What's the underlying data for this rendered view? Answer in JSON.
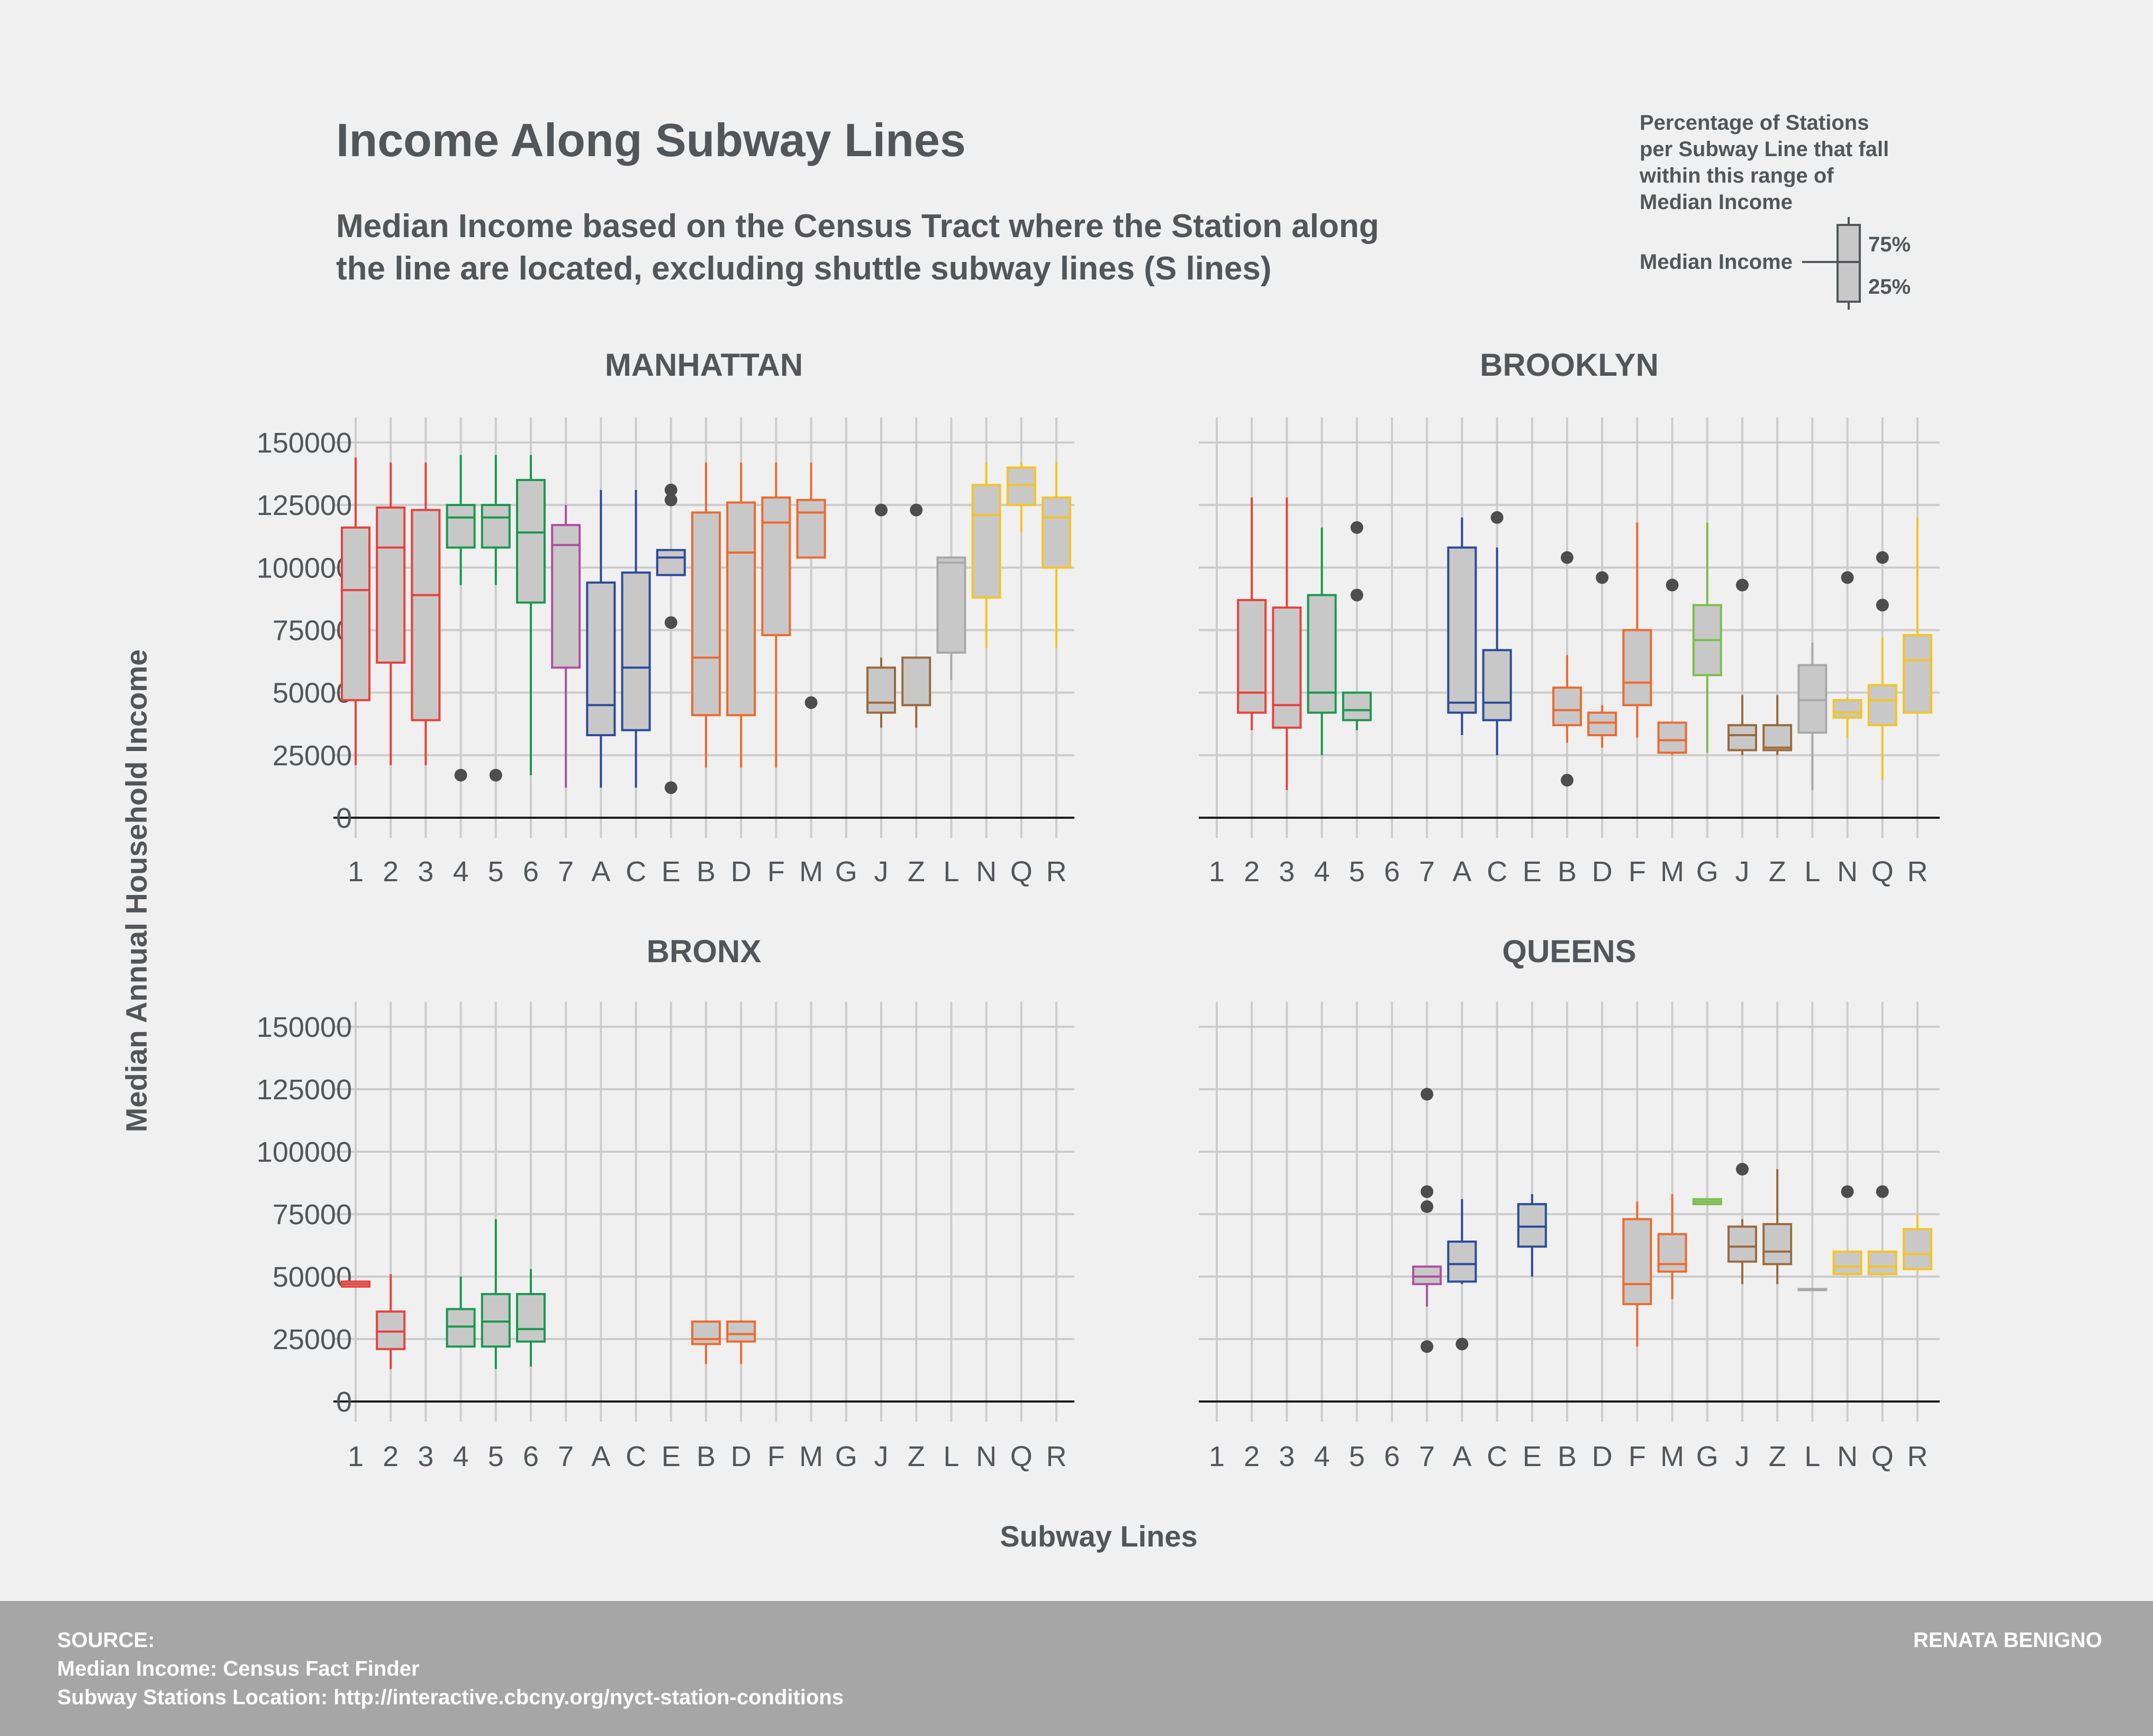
{
  "title": "Income Along Subway Lines",
  "subtitle_line1": "Median Income based on the Census Tract where the Station along",
  "subtitle_line2": "the line are located, excluding shuttle subway lines (S lines)",
  "legend": {
    "lines": [
      "Percentage of Stations",
      "per Subway Line that fall",
      "within this range of",
      "Median Income"
    ],
    "median_label": "Median Income",
    "upper_label": "75%",
    "lower_label": "25%"
  },
  "footer": {
    "source_label": "SOURCE:",
    "source_line1": "Median Income: Census Fact Finder",
    "source_line2": "Subway Stations Location: http://interactive.cbcny.org/nyct-station-conditions",
    "author": "RENATA BENIGNO"
  },
  "chart_data": {
    "type": "boxplot",
    "xlabel": "Subway Lines",
    "ylabel": "Median Annual Household Income",
    "ylim": [
      0,
      160000
    ],
    "yticks": [
      0,
      25000,
      50000,
      75000,
      100000,
      125000,
      150000
    ],
    "ytick_labels": [
      "0",
      "25000",
      "50000",
      "75000",
      "100000",
      "125000",
      "150000"
    ],
    "categories": [
      "1",
      "2",
      "3",
      "4",
      "5",
      "6",
      "7",
      "A",
      "C",
      "E",
      "B",
      "D",
      "F",
      "M",
      "G",
      "J",
      "Z",
      "L",
      "N",
      "Q",
      "R"
    ],
    "line_colors": {
      "1": "#e8413c",
      "2": "#e8413c",
      "3": "#e8413c",
      "4": "#1a9850",
      "5": "#1a9850",
      "6": "#1a9850",
      "7": "#b04fa0",
      "A": "#2b4a9a",
      "C": "#2b4a9a",
      "E": "#2b4a9a",
      "B": "#ee6a2e",
      "D": "#ee6a2e",
      "F": "#ee6a2e",
      "M": "#ee6a2e",
      "G": "#7bbf4b",
      "J": "#9b6a3c",
      "Z": "#9b6a3c",
      "L": "#a8a8a8",
      "N": "#f5c425",
      "Q": "#f5c425",
      "R": "#f5c425"
    },
    "panels": [
      {
        "name": "MANHATTAN",
        "boxes": [
          {
            "line": "1",
            "min": 21000,
            "q1": 47000,
            "median": 91000,
            "q3": 116000,
            "max": 144000,
            "outliers": []
          },
          {
            "line": "2",
            "min": 21000,
            "q1": 62000,
            "median": 108000,
            "q3": 124000,
            "max": 142000,
            "outliers": []
          },
          {
            "line": "3",
            "min": 21000,
            "q1": 39000,
            "median": 89000,
            "q3": 123000,
            "max": 142000,
            "outliers": []
          },
          {
            "line": "4",
            "min": 93000,
            "q1": 108000,
            "median": 120000,
            "q3": 125000,
            "max": 145000,
            "outliers": [
              17000
            ]
          },
          {
            "line": "5",
            "min": 93000,
            "q1": 108000,
            "median": 120000,
            "q3": 125000,
            "max": 145000,
            "outliers": [
              17000
            ]
          },
          {
            "line": "6",
            "min": 17000,
            "q1": 86000,
            "median": 114000,
            "q3": 135000,
            "max": 145000,
            "outliers": []
          },
          {
            "line": "7",
            "min": 12000,
            "q1": 60000,
            "median": 109000,
            "q3": 117000,
            "max": 125000,
            "outliers": []
          },
          {
            "line": "A",
            "min": 12000,
            "q1": 33000,
            "median": 45000,
            "q3": 94000,
            "max": 131000,
            "outliers": []
          },
          {
            "line": "C",
            "min": 12000,
            "q1": 35000,
            "median": 60000,
            "q3": 98000,
            "max": 131000,
            "outliers": []
          },
          {
            "line": "E",
            "min": 97000,
            "q1": 97000,
            "median": 104000,
            "q3": 107000,
            "max": 107000,
            "outliers": [
              12000,
              78000,
              127000,
              131000
            ]
          },
          {
            "line": "B",
            "min": 20000,
            "q1": 41000,
            "median": 64000,
            "q3": 122000,
            "max": 142000,
            "outliers": []
          },
          {
            "line": "D",
            "min": 20000,
            "q1": 41000,
            "median": 106000,
            "q3": 126000,
            "max": 142000,
            "outliers": []
          },
          {
            "line": "F",
            "min": 20000,
            "q1": 73000,
            "median": 118000,
            "q3": 128000,
            "max": 142000,
            "outliers": []
          },
          {
            "line": "M",
            "min": 104000,
            "q1": 104000,
            "median": 122000,
            "q3": 127000,
            "max": 142000,
            "outliers": [
              46000
            ]
          },
          {
            "line": "J",
            "min": 36000,
            "q1": 42000,
            "median": 46000,
            "q3": 60000,
            "max": 64000,
            "outliers": [
              123000
            ]
          },
          {
            "line": "Z",
            "min": 36000,
            "q1": 45000,
            "median": 45000,
            "q3": 64000,
            "max": 64000,
            "outliers": [
              123000
            ]
          },
          {
            "line": "L",
            "min": 55000,
            "q1": 66000,
            "median": 102000,
            "q3": 104000,
            "max": 104000,
            "outliers": []
          },
          {
            "line": "N",
            "min": 68000,
            "q1": 88000,
            "median": 121000,
            "q3": 133000,
            "max": 142000,
            "outliers": []
          },
          {
            "line": "Q",
            "min": 114000,
            "q1": 125000,
            "median": 133000,
            "q3": 140000,
            "max": 142000,
            "outliers": []
          },
          {
            "line": "R",
            "min": 68000,
            "q1": 100000,
            "median": 120000,
            "q3": 128000,
            "max": 142000,
            "outliers": []
          }
        ]
      },
      {
        "name": "BROOKLYN",
        "boxes": [
          {
            "line": "2",
            "min": 35000,
            "q1": 42000,
            "median": 50000,
            "q3": 87000,
            "max": 128000,
            "outliers": []
          },
          {
            "line": "3",
            "min": 11000,
            "q1": 36000,
            "median": 45000,
            "q3": 84000,
            "max": 128000,
            "outliers": []
          },
          {
            "line": "4",
            "min": 25000,
            "q1": 42000,
            "median": 50000,
            "q3": 89000,
            "max": 116000,
            "outliers": []
          },
          {
            "line": "5",
            "min": 35000,
            "q1": 39000,
            "median": 43000,
            "q3": 50000,
            "max": 50000,
            "outliers": [
              89000,
              116000
            ]
          },
          {
            "line": "A",
            "min": 33000,
            "q1": 42000,
            "median": 46000,
            "q3": 108000,
            "max": 120000,
            "outliers": []
          },
          {
            "line": "C",
            "min": 25000,
            "q1": 39000,
            "median": 46000,
            "q3": 67000,
            "max": 108000,
            "outliers": [
              120000
            ]
          },
          {
            "line": "B",
            "min": 30000,
            "q1": 37000,
            "median": 43000,
            "q3": 52000,
            "max": 65000,
            "outliers": [
              15000,
              104000
            ]
          },
          {
            "line": "D",
            "min": 28000,
            "q1": 33000,
            "median": 38000,
            "q3": 42000,
            "max": 45000,
            "outliers": [
              96000
            ]
          },
          {
            "line": "F",
            "min": 32000,
            "q1": 45000,
            "median": 54000,
            "q3": 75000,
            "max": 118000,
            "outliers": []
          },
          {
            "line": "M",
            "min": 25000,
            "q1": 26000,
            "median": 31000,
            "q3": 38000,
            "max": 38000,
            "outliers": [
              93000
            ]
          },
          {
            "line": "G",
            "min": 26000,
            "q1": 57000,
            "median": 71000,
            "q3": 85000,
            "max": 118000,
            "outliers": []
          },
          {
            "line": "J",
            "min": 25000,
            "q1": 27000,
            "median": 33000,
            "q3": 37000,
            "max": 49000,
            "outliers": [
              93000
            ]
          },
          {
            "line": "Z",
            "min": 25000,
            "q1": 27000,
            "median": 28000,
            "q3": 37000,
            "max": 49000,
            "outliers": []
          },
          {
            "line": "L",
            "min": 11000,
            "q1": 34000,
            "median": 47000,
            "q3": 61000,
            "max": 70000,
            "outliers": []
          },
          {
            "line": "N",
            "min": 32000,
            "q1": 40000,
            "median": 42000,
            "q3": 47000,
            "max": 48000,
            "outliers": [
              96000
            ]
          },
          {
            "line": "Q",
            "min": 15000,
            "q1": 37000,
            "median": 47000,
            "q3": 53000,
            "max": 72000,
            "outliers": [
              85000,
              104000
            ]
          },
          {
            "line": "R",
            "min": 42000,
            "q1": 42000,
            "median": 63000,
            "q3": 73000,
            "max": 120000,
            "outliers": []
          }
        ]
      },
      {
        "name": "BRONX",
        "boxes": [
          {
            "line": "1",
            "min": 46000,
            "q1": 46000,
            "median": 47000,
            "q3": 48000,
            "max": 48000,
            "outliers": []
          },
          {
            "line": "2",
            "min": 13000,
            "q1": 21000,
            "median": 28000,
            "q3": 36000,
            "max": 51000,
            "outliers": []
          },
          {
            "line": "4",
            "min": 22000,
            "q1": 22000,
            "median": 30000,
            "q3": 37000,
            "max": 50000,
            "outliers": []
          },
          {
            "line": "5",
            "min": 13000,
            "q1": 22000,
            "median": 32000,
            "q3": 43000,
            "max": 73000,
            "outliers": []
          },
          {
            "line": "6",
            "min": 14000,
            "q1": 24000,
            "median": 29000,
            "q3": 43000,
            "max": 53000,
            "outliers": []
          },
          {
            "line": "B",
            "min": 15000,
            "q1": 23000,
            "median": 25000,
            "q3": 32000,
            "max": 32000,
            "outliers": []
          },
          {
            "line": "D",
            "min": 15000,
            "q1": 24000,
            "median": 27000,
            "q3": 32000,
            "max": 32000,
            "outliers": []
          }
        ]
      },
      {
        "name": "QUEENS",
        "boxes": [
          {
            "line": "7",
            "min": 38000,
            "q1": 47000,
            "median": 50000,
            "q3": 54000,
            "max": 54000,
            "outliers": [
              22000,
              78000,
              84000,
              123000
            ]
          },
          {
            "line": "A",
            "min": 47000,
            "q1": 48000,
            "median": 55000,
            "q3": 64000,
            "max": 81000,
            "outliers": [
              23000
            ]
          },
          {
            "line": "E",
            "min": 50000,
            "q1": 62000,
            "median": 70000,
            "q3": 79000,
            "max": 83000,
            "outliers": []
          },
          {
            "line": "F",
            "min": 22000,
            "q1": 39000,
            "median": 47000,
            "q3": 73000,
            "max": 80000,
            "outliers": []
          },
          {
            "line": "M",
            "min": 41000,
            "q1": 52000,
            "median": 55000,
            "q3": 67000,
            "max": 83000,
            "outliers": []
          },
          {
            "line": "G",
            "min": 79000,
            "q1": 79000,
            "median": 80000,
            "q3": 81000,
            "max": 81000,
            "outliers": []
          },
          {
            "line": "J",
            "min": 47000,
            "q1": 56000,
            "median": 62000,
            "q3": 70000,
            "max": 73000,
            "outliers": [
              93000
            ]
          },
          {
            "line": "Z",
            "min": 47000,
            "q1": 55000,
            "median": 60000,
            "q3": 71000,
            "max": 93000,
            "outliers": []
          },
          {
            "line": "L",
            "min": 45000,
            "q1": 45000,
            "median": 45000,
            "q3": 45000,
            "max": 45000,
            "outliers": []
          },
          {
            "line": "N",
            "min": 50000,
            "q1": 51000,
            "median": 54000,
            "q3": 60000,
            "max": 60000,
            "outliers": [
              84000
            ]
          },
          {
            "line": "Q",
            "min": 50000,
            "q1": 51000,
            "median": 54000,
            "q3": 60000,
            "max": 60000,
            "outliers": [
              84000
            ]
          },
          {
            "line": "R",
            "min": 53000,
            "q1": 53000,
            "median": 59000,
            "q3": 69000,
            "max": 75000,
            "outliers": []
          }
        ]
      }
    ]
  }
}
